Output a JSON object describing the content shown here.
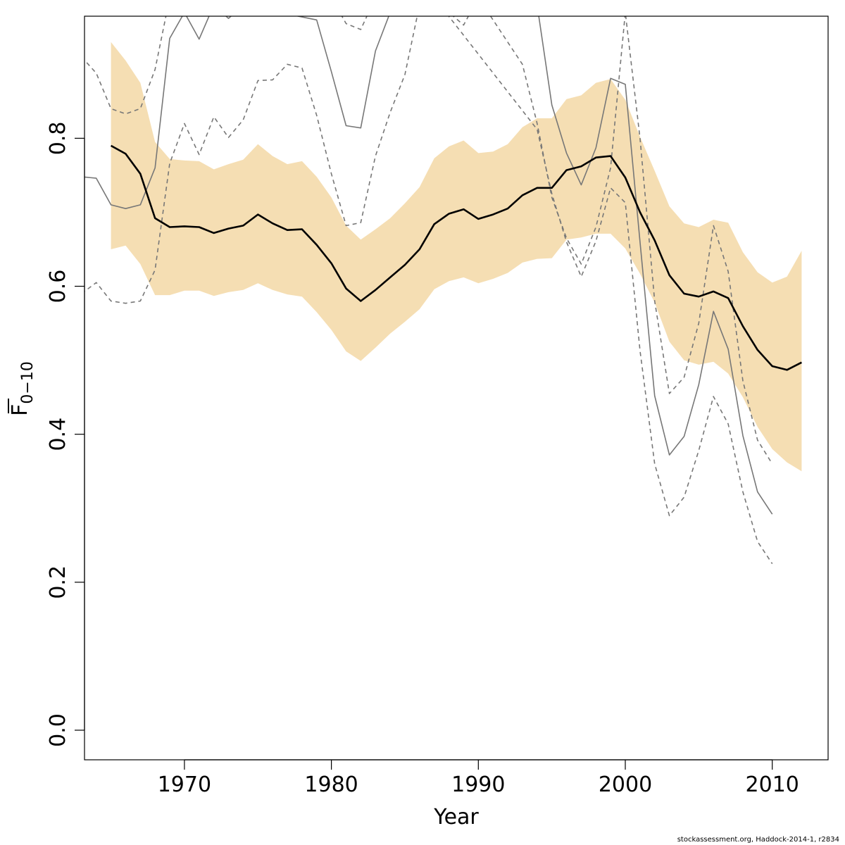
{
  "chart_data": {
    "type": "line",
    "title": "",
    "xlabel": "Year",
    "ylabel": "F",
    "ylabel_subscript": "0−10",
    "xlim": [
      1963.2,
      2013.8
    ],
    "ylim": [
      -0.04,
      0.965
    ],
    "xticks": [
      1970,
      1980,
      1990,
      2000,
      2010
    ],
    "yticks": [
      0.0,
      0.2,
      0.4,
      0.6,
      0.8
    ],
    "ytick_labels": [
      "0.0",
      "0.2",
      "0.4",
      "0.6",
      "0.8"
    ],
    "grid": false,
    "band_color": "#F5DEB3",
    "estimate_color": "#000000",
    "retro_color": "#777777",
    "confidence_band": {
      "x": [
        1965,
        1966,
        1967,
        1968,
        1969,
        1970,
        1971,
        1972,
        1973,
        1974,
        1975,
        1976,
        1977,
        1978,
        1979,
        1980,
        1981,
        1982,
        1983,
        1984,
        1985,
        1986,
        1987,
        1988,
        1989,
        1990,
        1991,
        1992,
        1993,
        1994,
        1995,
        1996,
        1997,
        1998,
        1999,
        2000,
        2001,
        2002,
        2003,
        2004,
        2005,
        2006,
        2007,
        2008,
        2009,
        2010,
        2011,
        2012
      ],
      "lower": [
        0.65,
        0.655,
        0.63,
        0.588,
        0.588,
        0.594,
        0.594,
        0.587,
        0.592,
        0.595,
        0.604,
        0.595,
        0.589,
        0.586,
        0.565,
        0.541,
        0.512,
        0.499,
        0.517,
        0.536,
        0.552,
        0.569,
        0.596,
        0.607,
        0.612,
        0.604,
        0.61,
        0.618,
        0.632,
        0.637,
        0.638,
        0.663,
        0.666,
        0.671,
        0.671,
        0.651,
        0.617,
        0.578,
        0.525,
        0.5,
        0.494,
        0.498,
        0.482,
        0.45,
        0.41,
        0.38,
        0.362,
        0.35
      ],
      "upper": [
        0.93,
        0.905,
        0.875,
        0.795,
        0.772,
        0.77,
        0.769,
        0.758,
        0.765,
        0.771,
        0.792,
        0.776,
        0.765,
        0.769,
        0.748,
        0.72,
        0.682,
        0.663,
        0.677,
        0.692,
        0.712,
        0.734,
        0.773,
        0.789,
        0.797,
        0.78,
        0.782,
        0.792,
        0.815,
        0.827,
        0.827,
        0.853,
        0.858,
        0.875,
        0.88,
        0.852,
        0.802,
        0.756,
        0.708,
        0.685,
        0.68,
        0.69,
        0.686,
        0.646,
        0.619,
        0.605,
        0.613,
        0.648
      ]
    },
    "series": [
      {
        "style": "estimate",
        "x": [
          1965,
          1966,
          1967,
          1968,
          1969,
          1970,
          1971,
          1972,
          1973,
          1974,
          1975,
          1976,
          1977,
          1978,
          1979,
          1980,
          1981,
          1982,
          1983,
          1984,
          1985,
          1986,
          1987,
          1988,
          1989,
          1990,
          1991,
          1992,
          1993,
          1994,
          1995,
          1996,
          1997,
          1998,
          1999,
          2000,
          2001,
          2002,
          2003,
          2004,
          2005,
          2006,
          2007,
          2008,
          2009,
          2010,
          2011,
          2012
        ],
        "values": [
          0.79,
          0.779,
          0.752,
          0.692,
          0.68,
          0.681,
          0.68,
          0.672,
          0.678,
          0.682,
          0.697,
          0.685,
          0.676,
          0.677,
          0.656,
          0.631,
          0.597,
          0.58,
          0.595,
          0.612,
          0.629,
          0.65,
          0.684,
          0.698,
          0.704,
          0.691,
          0.697,
          0.705,
          0.723,
          0.733,
          0.733,
          0.757,
          0.762,
          0.774,
          0.776,
          0.747,
          0.7,
          0.662,
          0.615,
          0.59,
          0.586,
          0.593,
          0.584,
          0.546,
          0.514,
          0.492,
          0.487,
          0.497
        ]
      },
      {
        "style": "retro-solid",
        "x": [
          1963,
          1964,
          1965,
          1966,
          1967,
          1968,
          1969,
          1970,
          1971,
          1972,
          1973,
          1974,
          1979,
          1980,
          1981,
          1982,
          1983,
          1984,
          1994,
          1995,
          1996,
          1997,
          1998,
          1999,
          2000,
          2001,
          2002,
          2003,
          2004,
          2005,
          2006,
          2007,
          2008,
          2009,
          2010
        ],
        "values": [
          0.748,
          0.746,
          0.71,
          0.705,
          0.71,
          0.76,
          0.935,
          0.97,
          0.934,
          0.98,
          0.962,
          0.98,
          0.96,
          0.89,
          0.817,
          0.814,
          0.918,
          0.97,
          0.98,
          0.845,
          0.78,
          0.737,
          0.787,
          0.881,
          0.873,
          0.66,
          0.452,
          0.372,
          0.397,
          0.467,
          0.566,
          0.515,
          0.398,
          0.322,
          0.292
        ]
      },
      {
        "style": "retro-dashed",
        "x": [
          1963,
          1964,
          1965,
          1966,
          1967,
          1968,
          1969,
          1970,
          1971,
          1972,
          1973,
          1974,
          1975,
          1976,
          1977,
          1978,
          1979,
          1980,
          1981,
          1982,
          1983,
          1984,
          1985,
          1986,
          1987,
          1994,
          1995,
          1996,
          1997,
          1998,
          1999,
          2000,
          2001,
          2002,
          2003,
          2004,
          2005,
          2006,
          2007,
          2008,
          2009,
          2010
        ],
        "values": [
          0.59,
          0.605,
          0.58,
          0.577,
          0.58,
          0.622,
          0.766,
          0.82,
          0.778,
          0.829,
          0.801,
          0.825,
          0.878,
          0.879,
          0.9,
          0.895,
          0.831,
          0.752,
          0.682,
          0.686,
          0.776,
          0.835,
          0.886,
          0.98,
          0.99,
          0.812,
          0.725,
          0.66,
          0.613,
          0.661,
          0.733,
          0.713,
          0.513,
          0.36,
          0.29,
          0.315,
          0.378,
          0.451,
          0.414,
          0.322,
          0.255,
          0.225
        ]
      },
      {
        "style": "retro-dashed",
        "x": [
          1963,
          1964,
          1965,
          1966,
          1967,
          1968,
          1969,
          1980,
          1981,
          1982,
          1983,
          1988,
          1989,
          1990,
          1992,
          1993,
          1994,
          1995,
          1996,
          1997,
          1998,
          1999,
          2000,
          2001,
          2002,
          2003,
          2004,
          2005,
          2006,
          2007,
          2008,
          2009,
          2010
        ],
        "values": [
          0.91,
          0.888,
          0.84,
          0.833,
          0.84,
          0.893,
          0.99,
          0.99,
          0.955,
          0.947,
          0.99,
          0.97,
          0.953,
          0.99,
          0.93,
          0.9,
          0.82,
          0.72,
          0.665,
          0.63,
          0.68,
          0.76,
          0.97,
          0.8,
          0.58,
          0.455,
          0.477,
          0.55,
          0.682,
          0.62,
          0.472,
          0.392,
          0.36
        ]
      }
    ]
  },
  "footer": {
    "text": "stockassessment.org, Haddock-2014-1, r2834"
  }
}
